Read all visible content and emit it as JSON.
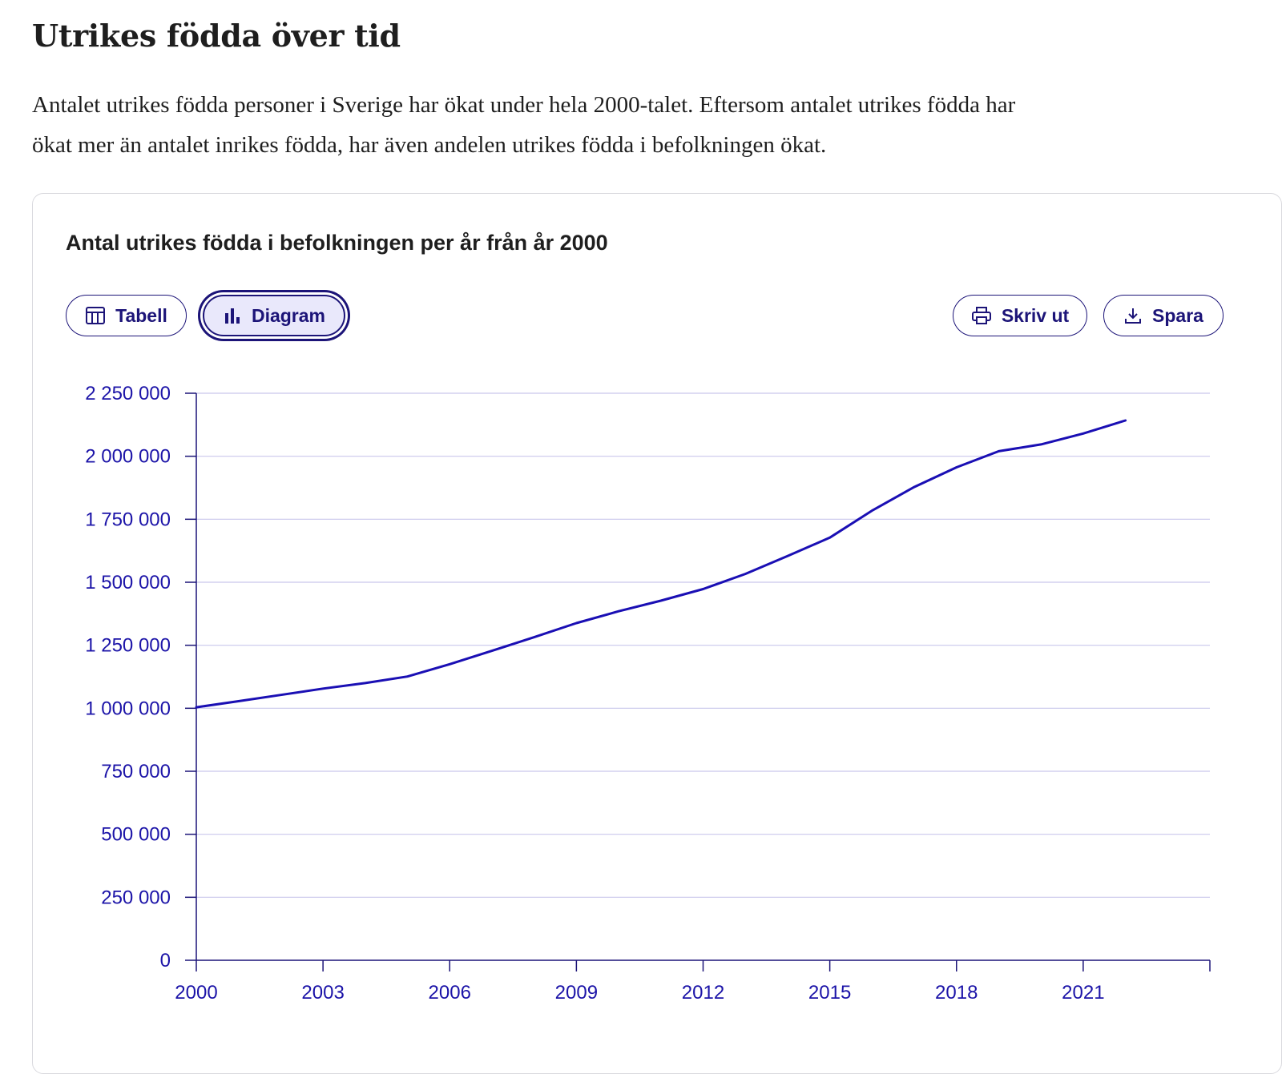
{
  "page": {
    "title": "Utrikes födda över tid",
    "intro": "Antalet utrikes födda personer i Sverige har ökat under hela 2000-talet. Eftersom antalet utrikes födda har ökat mer än antalet inrikes födda, har även andelen utrikes födda i befolkningen ökat."
  },
  "toolbar": {
    "table_label": "Tabell",
    "chart_label": "Diagram",
    "print_label": "Skriv ut",
    "save_label": "Spara",
    "active_view": "Diagram",
    "icons": {
      "table": "table-icon",
      "chart": "bar-chart-icon",
      "print": "printer-icon",
      "save": "download-icon"
    }
  },
  "colors": {
    "accent": "#1c1478",
    "series": "#1a0fb4",
    "axis_text": "#1c14a8",
    "grid": "#c9c7ec"
  },
  "chart_data": {
    "type": "line",
    "title": "Antal utrikes födda i befolkningen per år från år 2000",
    "xlabel": "",
    "ylabel": "",
    "x_ticks": [
      "2000",
      "2003",
      "2006",
      "2009",
      "2012",
      "2015",
      "2018",
      "2021"
    ],
    "y_ticks": [
      "0",
      "250 000",
      "500 000",
      "750 000",
      "1 000 000",
      "1 250 000",
      "1 500 000",
      "1 750 000",
      "2 000 000",
      "2 250 000"
    ],
    "xlim": [
      2000,
      2024
    ],
    "ylim": [
      0,
      2250000
    ],
    "grid": true,
    "series": [
      {
        "x": [
          2000,
          2001,
          2002,
          2003,
          2004,
          2005,
          2006,
          2007,
          2008,
          2009,
          2010,
          2011,
          2012,
          2013,
          2014,
          2015,
          2016,
          2017,
          2018,
          2019,
          2020,
          2021,
          2022
        ],
        "values": [
          1004000,
          1028000,
          1053000,
          1078000,
          1100000,
          1126000,
          1175000,
          1228000,
          1282000,
          1338000,
          1385000,
          1427000,
          1473000,
          1533000,
          1604000,
          1677000,
          1784000,
          1878000,
          1956000,
          2020000,
          2047000,
          2090000,
          2142000
        ]
      }
    ]
  }
}
